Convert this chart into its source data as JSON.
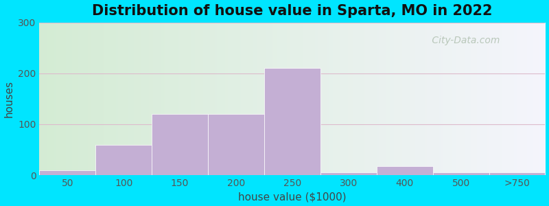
{
  "title": "Distribution of house value in Sparta, MO in 2022",
  "xlabel": "house value ($1000)",
  "ylabel": "houses",
  "bar_color": "#c4afd4",
  "bar_edgecolor": "#ffffff",
  "background_outer": "#00e5ff",
  "yticks": [
    0,
    100,
    200,
    300
  ],
  "ylim": [
    0,
    300
  ],
  "xtick_labels": [
    "50",
    "100",
    "150",
    "200",
    "250",
    "300",
    "400",
    "500",
    ">750"
  ],
  "bar_heights": [
    10,
    60,
    120,
    120,
    210,
    5,
    18,
    5,
    5
  ],
  "watermark_text": " City-Data.com",
  "grid_color": "#ddbbcc",
  "title_fontsize": 15,
  "axis_label_fontsize": 11,
  "tick_fontsize": 10
}
